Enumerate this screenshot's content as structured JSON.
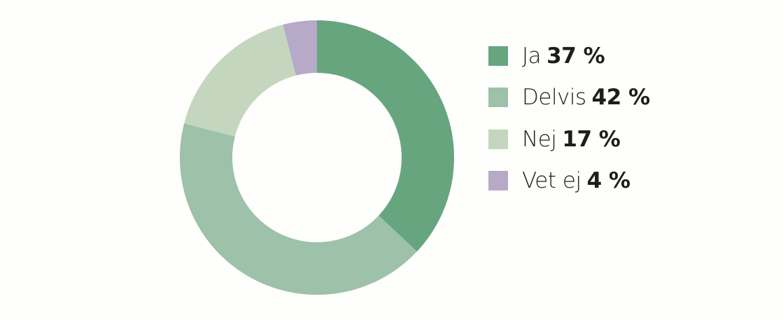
{
  "chart_data": {
    "type": "pie",
    "variant": "donut",
    "title": "",
    "legend_position": "right",
    "slices": [
      {
        "label": "Ja",
        "value": 37,
        "value_label": "37 %",
        "color": "#67a57f"
      },
      {
        "label": "Delvis",
        "value": 42,
        "value_label": "42 %",
        "color": "#9dc1a9"
      },
      {
        "label": "Nej",
        "value": 17,
        "value_label": "17 %",
        "color": "#c4d7be"
      },
      {
        "label": "Vet ej",
        "value": 4,
        "value_label": "4 %",
        "color": "#b6aac8"
      }
    ]
  }
}
